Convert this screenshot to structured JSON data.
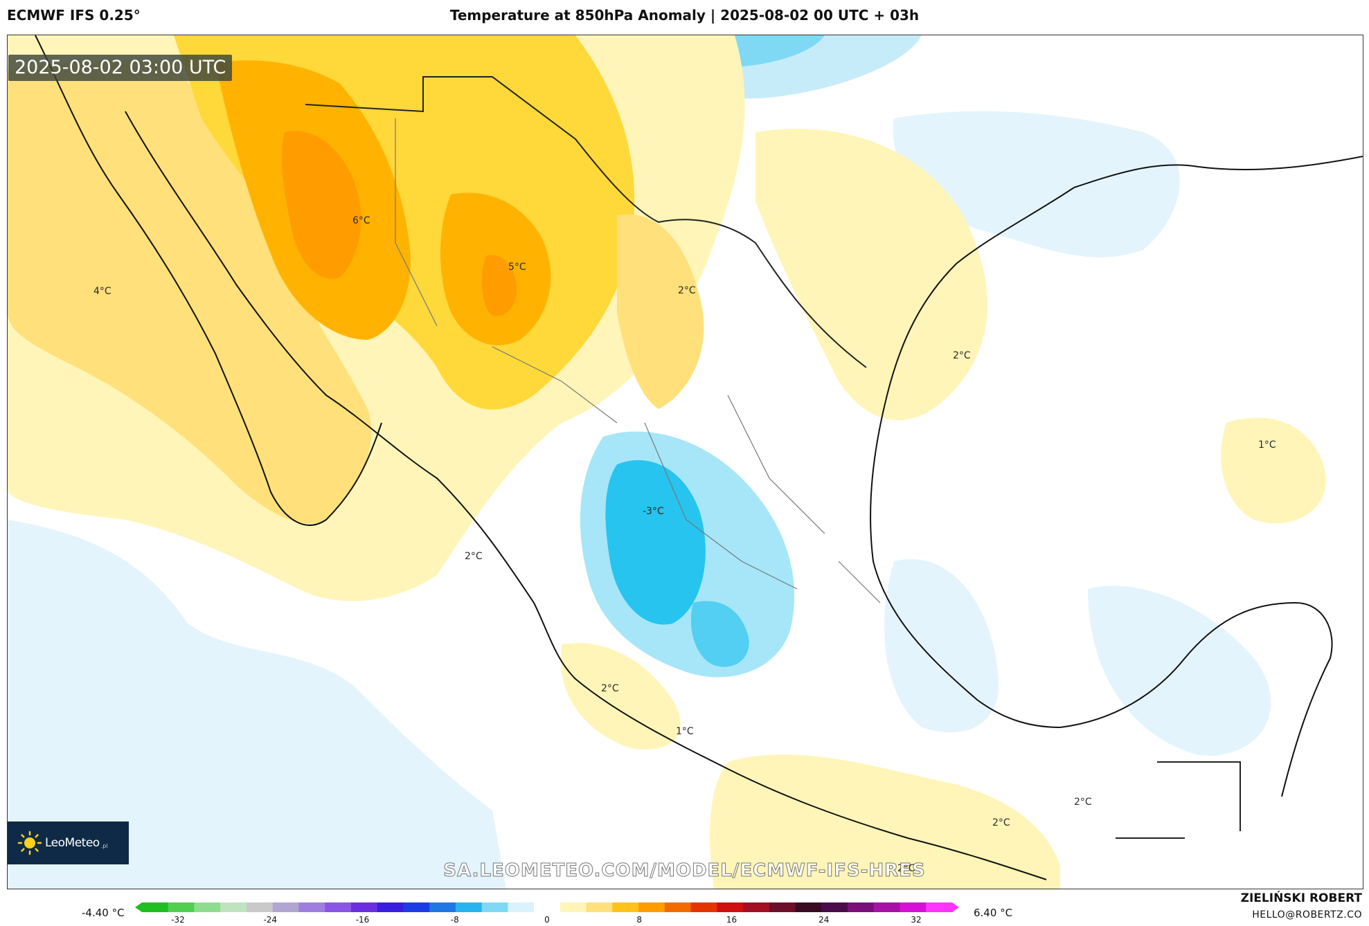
{
  "header": {
    "model": "ECMWF IFS 0.25°",
    "title": "Temperature at 850hPa Anomaly | 2025-08-02 00 UTC + 03h"
  },
  "timestamp": "2025-08-02 03:00 UTC",
  "logo": {
    "brand": "LeoMeteo",
    "suffix": ".pl"
  },
  "watermark_url": "SA.LEOMETEO.COM/MODEL/ECMWF-IFS-HRES",
  "map_labels": [
    "6°C",
    "5°C",
    "4°C",
    "2°C",
    "2°C",
    "2°C",
    "1°C",
    "-3°C",
    "2°C",
    "2°C",
    "1°C",
    "2°C",
    "2°C"
  ],
  "scale": {
    "min_label": "-4.40 °C",
    "max_label": "6.40 °C",
    "ticks": [
      "-32",
      "-24",
      "-16",
      "-8",
      "0",
      "8",
      "16",
      "24",
      "32"
    ],
    "colors": [
      "#1fbf1f",
      "#4fd14f",
      "#8fdc8f",
      "#bfe3bf",
      "#c9c9c9",
      "#b0a6cf",
      "#9e7fe0",
      "#8a55e6",
      "#6b2fe0",
      "#3a1ee0",
      "#1c3ce6",
      "#1d78e6",
      "#27b3ef",
      "#7fd9f5",
      "#d9f2fb",
      "#ffffff",
      "#fff5b8",
      "#ffe07a",
      "#ffc21a",
      "#ff9d00",
      "#f26b00",
      "#e63400",
      "#d10f0f",
      "#a31023",
      "#6e0f2a",
      "#3a0b22",
      "#4a0c4a",
      "#7a0f7a",
      "#a810a8",
      "#d611d6",
      "#ff33ff"
    ]
  },
  "author": {
    "name": "ZIELIŃSKI ROBERT",
    "email": "HELLO@ROBERTZ.CO"
  }
}
